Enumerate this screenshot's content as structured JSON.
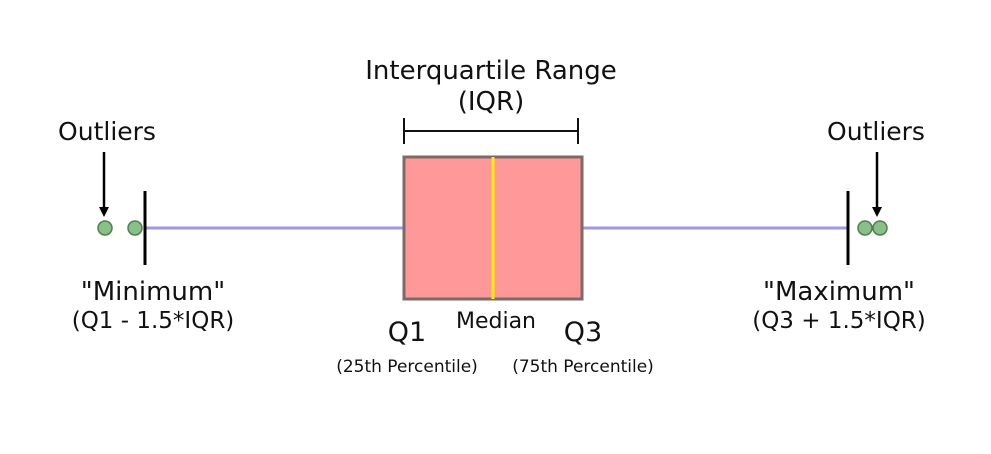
{
  "title_line1": "Interquartile Range",
  "title_line2": "(IQR)",
  "outliers_left_label": "Outliers",
  "outliers_right_label": "Outliers",
  "minimum_label": "\"Minimum\"",
  "minimum_formula": "(Q1 - 1.5*IQR)",
  "maximum_label": "\"Maximum\"",
  "maximum_formula": "(Q3 + 1.5*IQR)",
  "q1_label": "Q1",
  "q1_sub": "(25th Percentile)",
  "median_label": "Median",
  "q3_label": "Q3",
  "q3_sub": "(75th Percentile)",
  "colors": {
    "box_fill": "#ff9999",
    "box_stroke": "#7a6a6a",
    "median_line": "#ffee00",
    "whisker": "#9999ee",
    "outlier_fill": "#88c088",
    "outlier_stroke": "#4f7f4f"
  }
}
